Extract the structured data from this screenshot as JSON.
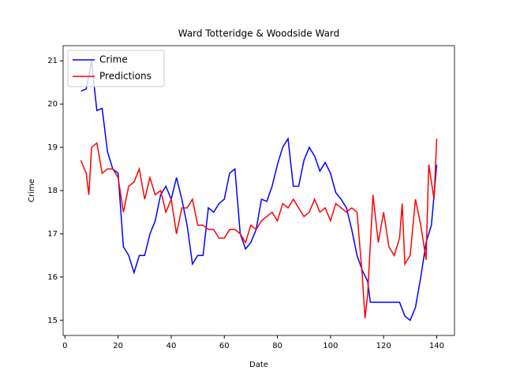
{
  "chart_data": {
    "type": "line",
    "title": "Ward Totteridge & Woodside Ward",
    "xlabel": "Date",
    "ylabel": "Crime",
    "xlim": [
      -0.7,
      146.7
    ],
    "ylim": [
      14.65,
      21.35
    ],
    "xticks": [
      0,
      20,
      40,
      60,
      80,
      100,
      120,
      140
    ],
    "yticks": [
      15,
      16,
      17,
      18,
      19,
      20,
      21
    ],
    "legend": "upper left",
    "series": [
      {
        "name": "Crime",
        "color": "#0000ff",
        "x": [
          6,
          8,
          10,
          12,
          14,
          16,
          18,
          20,
          22,
          24,
          26,
          28,
          30,
          32,
          34,
          36,
          38,
          40,
          42,
          44,
          46,
          48,
          50,
          52,
          54,
          56,
          58,
          60,
          62,
          64,
          66,
          68,
          70,
          72,
          74,
          76,
          78,
          80,
          82,
          84,
          86,
          88,
          90,
          92,
          94,
          96,
          98,
          100,
          102,
          104,
          106,
          108,
          110,
          112,
          114,
          115,
          126,
          128,
          130,
          132,
          134,
          136,
          138,
          140
        ],
        "values": [
          20.3,
          20.35,
          21.0,
          19.85,
          19.9,
          18.9,
          18.5,
          18.4,
          16.7,
          16.5,
          16.1,
          16.5,
          16.5,
          17.0,
          17.3,
          17.9,
          18.1,
          17.8,
          18.3,
          17.8,
          17.2,
          16.3,
          16.5,
          16.5,
          17.6,
          17.5,
          17.7,
          17.8,
          18.4,
          18.5,
          17.0,
          16.65,
          16.8,
          17.1,
          17.8,
          17.75,
          18.1,
          18.6,
          19.0,
          19.2,
          18.1,
          18.1,
          18.7,
          19.0,
          18.8,
          18.45,
          18.65,
          18.4,
          17.95,
          17.8,
          17.6,
          17.1,
          16.5,
          16.15,
          15.9,
          15.42,
          15.42,
          15.1,
          15.0,
          15.3,
          16.0,
          16.8,
          17.2,
          18.6
        ]
      },
      {
        "name": "Predictions",
        "color": "#ff0000",
        "x": [
          6,
          8,
          9,
          10,
          12,
          14,
          16,
          18,
          20,
          22,
          24,
          26,
          28,
          30,
          32,
          34,
          36,
          38,
          40,
          42,
          44,
          46,
          48,
          50,
          52,
          54,
          56,
          58,
          60,
          62,
          64,
          66,
          68,
          70,
          72,
          74,
          76,
          78,
          80,
          82,
          84,
          86,
          88,
          90,
          92,
          94,
          96,
          98,
          100,
          102,
          104,
          106,
          108,
          110,
          112,
          113,
          114,
          116,
          118,
          120,
          122,
          124,
          126,
          127,
          128,
          130,
          132,
          134,
          136,
          137,
          139,
          140
        ],
        "values": [
          18.7,
          18.4,
          17.9,
          19.0,
          19.1,
          18.4,
          18.5,
          18.5,
          18.3,
          17.5,
          18.1,
          18.2,
          18.5,
          17.8,
          18.3,
          17.9,
          18.0,
          17.5,
          17.8,
          17.0,
          17.6,
          17.6,
          17.8,
          17.2,
          17.2,
          17.1,
          17.1,
          16.9,
          16.9,
          17.1,
          17.1,
          17.0,
          16.8,
          17.2,
          17.1,
          17.3,
          17.4,
          17.5,
          17.3,
          17.7,
          17.6,
          17.8,
          17.6,
          17.4,
          17.5,
          17.8,
          17.5,
          17.6,
          17.3,
          17.7,
          17.6,
          17.5,
          17.6,
          17.5,
          16.0,
          15.05,
          15.6,
          17.9,
          16.8,
          17.5,
          16.7,
          16.5,
          16.9,
          17.7,
          16.3,
          16.5,
          17.8,
          17.2,
          16.4,
          18.6,
          17.8,
          19.2
        ]
      }
    ]
  }
}
